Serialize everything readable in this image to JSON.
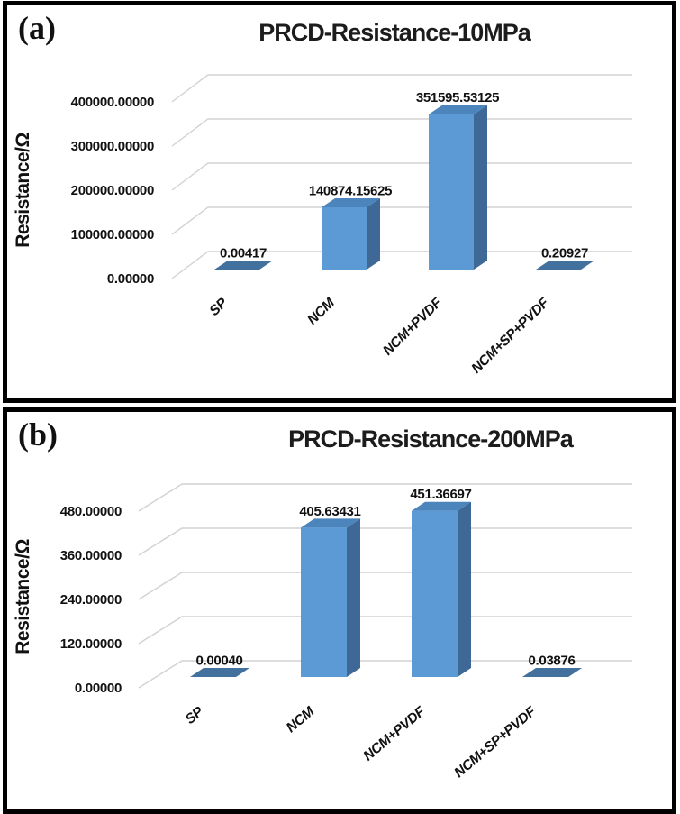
{
  "figure": {
    "description": "Two stacked 3D bar charts comparing PRCD resistance of electrode materials at two pressures",
    "grid_color": "#d2d2d2",
    "border_color": "#000000",
    "background": "#ffffff",
    "text_color": "#111111"
  },
  "chart_data": [
    {
      "type": "bar",
      "tag": "(a)",
      "title": "PRCD-Resistance-10MPa",
      "xlabel": "",
      "ylabel": "Resistance/Ω",
      "categories": [
        "SP",
        "NCM",
        "NCM+PVDF",
        "NCM+SP+PVDF"
      ],
      "values": [
        0.00417,
        140874.15625,
        351595.53125,
        0.20927
      ],
      "value_labels": [
        "0.00417",
        "140874.15625",
        "351595.53125",
        "0.20927"
      ],
      "ytick_labels": [
        "0.00000",
        "100000.00000",
        "200000.00000",
        "300000.00000",
        "400000.00000"
      ],
      "ytick_values": [
        0,
        100000,
        200000,
        300000,
        400000
      ],
      "ytick_step": 100000,
      "ylim": [
        0,
        400000
      ],
      "grid": true,
      "legend": "none",
      "style": "3d-column",
      "bar_color_front": "#5B9AD5",
      "bar_color_side": "#3E6896",
      "bar_color_top": "#4C84BC",
      "bar_color_flat": "#41719C"
    },
    {
      "type": "bar",
      "tag": "(b)",
      "title": "PRCD-Resistance-200MPa",
      "xlabel": "",
      "ylabel": "Resistance/Ω",
      "categories": [
        "SP",
        "NCM",
        "NCM+PVDF",
        "NCM+SP+PVDF"
      ],
      "values": [
        0.0004,
        405.63431,
        451.36697,
        0.03876
      ],
      "value_labels": [
        "0.00040",
        "405.63431",
        "451.36697",
        "0.03876"
      ],
      "ytick_labels": [
        "0.00000",
        "120.00000",
        "240.00000",
        "360.00000",
        "480.00000"
      ],
      "ytick_values": [
        0,
        120,
        240,
        360,
        480
      ],
      "ytick_step": 120,
      "ylim": [
        0,
        480
      ],
      "grid": true,
      "legend": "none",
      "style": "3d-column",
      "bar_color_front": "#5B9AD5",
      "bar_color_side": "#3E6896",
      "bar_color_top": "#4C84BC",
      "bar_color_flat": "#41719C"
    }
  ]
}
